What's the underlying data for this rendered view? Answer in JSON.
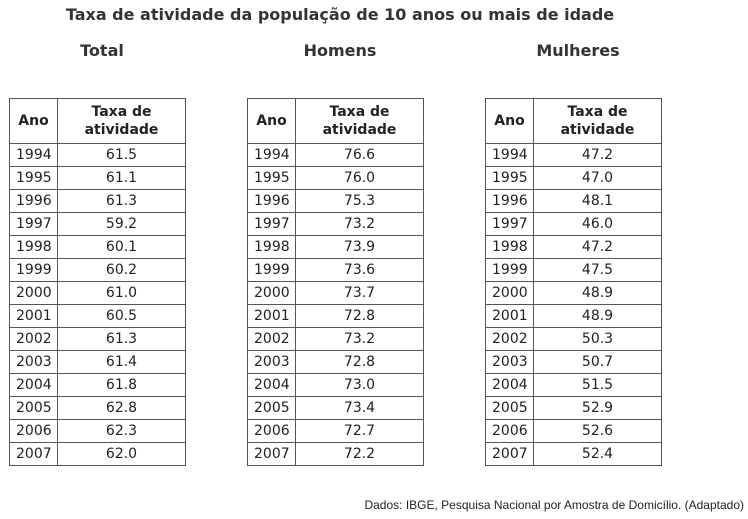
{
  "title": "Taxa de atividade da população de 10 anos ou mais de idade",
  "year_header": "Ano",
  "rate_header": "Taxa de atividade",
  "years": [
    "1994",
    "1995",
    "1996",
    "1997",
    "1998",
    "1999",
    "2000",
    "2001",
    "2002",
    "2003",
    "2004",
    "2005",
    "2006",
    "2007"
  ],
  "tables": [
    {
      "label": "Total",
      "values": [
        "61.5",
        "61.1",
        "61.3",
        "59.2",
        "60.1",
        "60.2",
        "61.0",
        "60.5",
        "61.3",
        "61.4",
        "61.8",
        "62.8",
        "62.3",
        "62.0"
      ]
    },
    {
      "label": "Homens",
      "values": [
        "76.6",
        "76.0",
        "75.3",
        "73.2",
        "73.9",
        "73.6",
        "73.7",
        "72.8",
        "73.2",
        "72.8",
        "73.0",
        "73.4",
        "72.7",
        "72.2"
      ]
    },
    {
      "label": "Mulheres",
      "values": [
        "47.2",
        "47.0",
        "48.1",
        "46.0",
        "47.2",
        "47.5",
        "48.9",
        "48.9",
        "50.3",
        "50.7",
        "51.5",
        "52.9",
        "52.6",
        "52.4"
      ]
    }
  ],
  "source": "Dados: IBGE, Pesquisa Nacional por Amostra de Domicílio. (Adaptado)"
}
